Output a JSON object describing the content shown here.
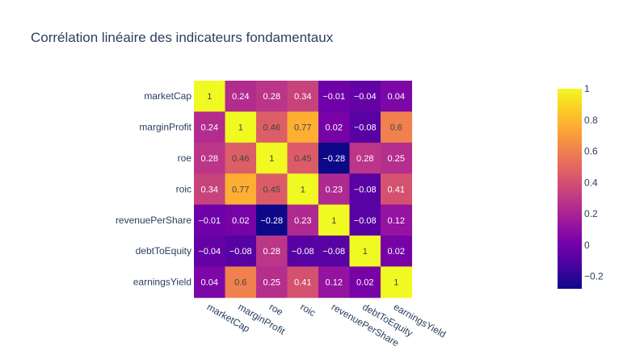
{
  "chart_data": {
    "type": "heatmap",
    "title": "Corrélation linéaire des indicateurs fondamentaux",
    "x": [
      "marketCap",
      "marginProfit",
      "roe",
      "roic",
      "revenuePerShare",
      "debtToEquity",
      "earningsYield"
    ],
    "y": [
      "marketCap",
      "marginProfit",
      "roe",
      "roic",
      "revenuePerShare",
      "debtToEquity",
      "earningsYield"
    ],
    "z": [
      [
        1,
        0.24,
        0.28,
        0.34,
        -0.01,
        -0.04,
        0.04
      ],
      [
        0.24,
        1,
        0.46,
        0.77,
        0.02,
        -0.08,
        0.6
      ],
      [
        0.28,
        0.46,
        1,
        0.45,
        -0.28,
        0.28,
        0.25
      ],
      [
        0.34,
        0.77,
        0.45,
        1,
        0.23,
        -0.08,
        0.41
      ],
      [
        -0.01,
        0.02,
        -0.28,
        0.23,
        1,
        -0.08,
        0.12
      ],
      [
        -0.04,
        -0.08,
        0.28,
        -0.08,
        -0.08,
        1,
        0.02
      ],
      [
        0.04,
        0.6,
        0.25,
        0.41,
        0.12,
        0.02,
        1
      ]
    ],
    "text": [
      [
        "1",
        "0.24",
        "0.28",
        "0.34",
        "−0.01",
        "−0.04",
        "0.04"
      ],
      [
        "0.24",
        "1",
        "0.46",
        "0.77",
        "0.02",
        "−0.08",
        "0.6"
      ],
      [
        "0.28",
        "0.46",
        "1",
        "0.45",
        "−0.28",
        "0.28",
        "0.25"
      ],
      [
        "0.34",
        "0.77",
        "0.45",
        "1",
        "0.23",
        "−0.08",
        "0.41"
      ],
      [
        "−0.01",
        "0.02",
        "−0.28",
        "0.23",
        "1",
        "−0.08",
        "0.12"
      ],
      [
        "−0.04",
        "−0.08",
        "0.28",
        "−0.08",
        "−0.08",
        "1",
        "0.02"
      ],
      [
        "0.04",
        "0.6",
        "0.25",
        "0.41",
        "0.12",
        "0.02",
        "1"
      ]
    ],
    "zmin": -0.28,
    "zmax": 1,
    "colorscale": "Plasma",
    "colorscale_stops": [
      "#0d0887",
      "#46039f",
      "#7201a8",
      "#9c179e",
      "#bd3786",
      "#d8576b",
      "#ed7953",
      "#fb9f3a",
      "#fdca26",
      "#f0f921"
    ],
    "colorbar": {
      "tickvals": [
        1,
        0.8,
        0.6,
        0.4,
        0.2,
        0,
        -0.2
      ],
      "ticktext": [
        "1",
        "0.8",
        "0.6",
        "0.4",
        "0.2",
        "0",
        "−0.2"
      ]
    }
  }
}
